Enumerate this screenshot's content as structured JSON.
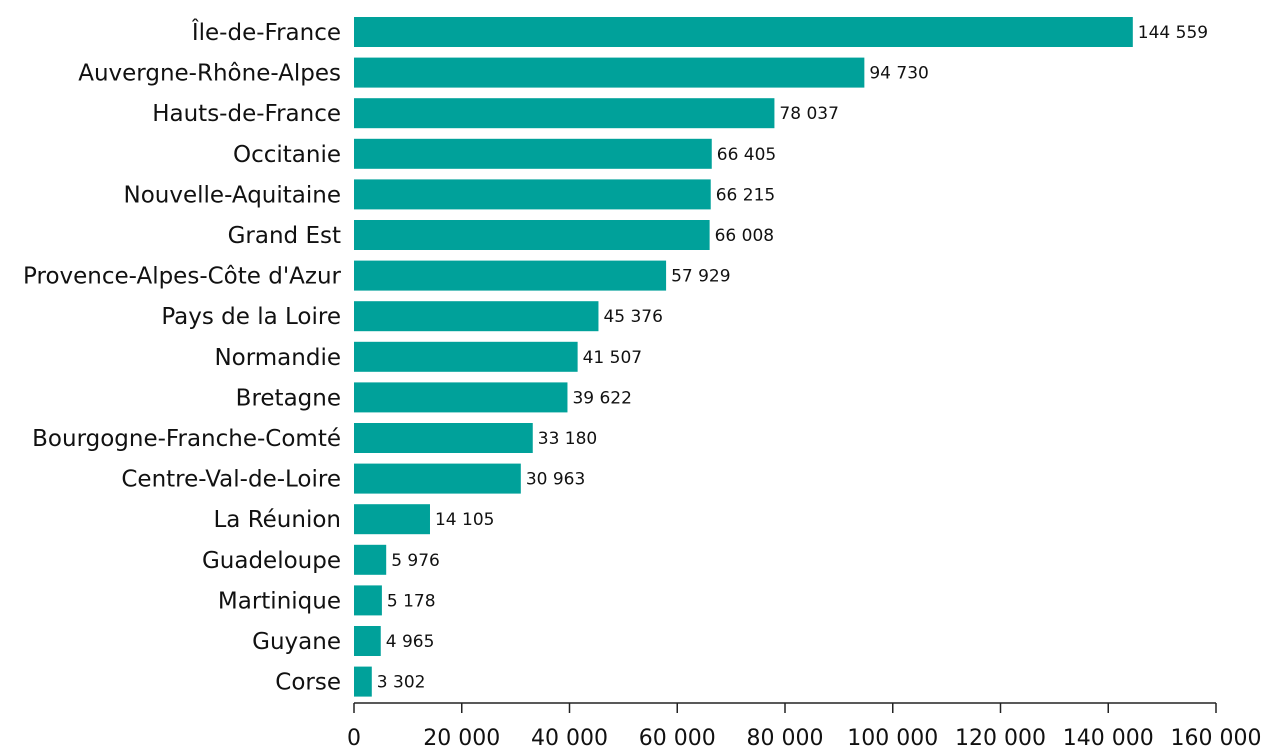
{
  "chart_data": {
    "type": "bar",
    "orientation": "horizontal",
    "categories": [
      "Île-de-France",
      "Auvergne-Rhône-Alpes",
      "Hauts-de-France",
      "Occitanie",
      "Nouvelle-Aquitaine",
      "Grand Est",
      "Provence-Alpes-Côte d'Azur",
      "Pays de la Loire",
      "Normandie",
      "Bretagne",
      "Bourgogne-Franche-Comté",
      "Centre-Val-de-Loire",
      "La Réunion",
      "Guadeloupe",
      "Martinique",
      "Guyane",
      "Corse"
    ],
    "values": [
      144559,
      94730,
      78037,
      66405,
      66215,
      66008,
      57929,
      45376,
      41507,
      39622,
      33180,
      30963,
      14105,
      5976,
      5178,
      4965,
      3302
    ],
    "value_labels": [
      "144 559",
      "94 730",
      "78 037",
      "66 405",
      "66 215",
      "66 008",
      "57 929",
      "45 376",
      "41 507",
      "39 622",
      "33 180",
      "30 963",
      "14 105",
      "5 976",
      "5 178",
      "4 965",
      "3 302"
    ],
    "x_ticks": [
      0,
      20000,
      40000,
      60000,
      80000,
      100000,
      120000,
      140000,
      160000
    ],
    "x_tick_labels": [
      "0",
      "20 000",
      "40 000",
      "60 000",
      "80 000",
      "100 000",
      "120 000",
      "140 000",
      "160 000"
    ],
    "xlim": [
      0,
      160000
    ],
    "grid": false,
    "bar_color": "#00A19A"
  }
}
